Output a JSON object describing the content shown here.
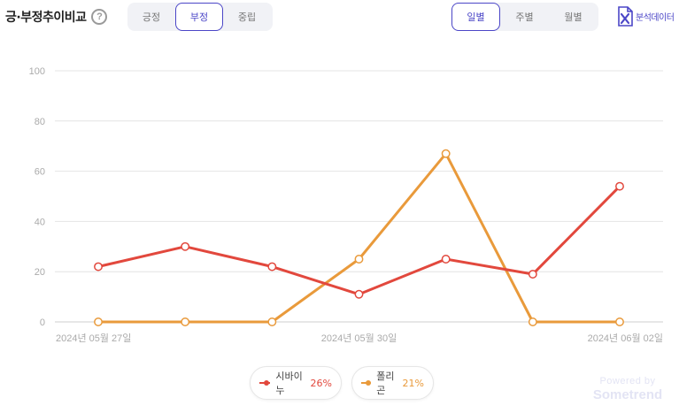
{
  "header": {
    "title": "긍·부정추이비교",
    "help_icon": "question-circle-icon"
  },
  "sentiment_tabs": [
    {
      "label": "긍정",
      "active": false
    },
    {
      "label": "부정",
      "active": true
    },
    {
      "label": "중립",
      "active": false
    }
  ],
  "period_tabs": [
    {
      "label": "일별",
      "active": true
    },
    {
      "label": "주별",
      "active": false
    },
    {
      "label": "월별",
      "active": false
    }
  ],
  "export": {
    "label": "분석데이터",
    "icon": "excel-icon"
  },
  "legend": [
    {
      "name": "시바이누",
      "percent": "26%",
      "color": "#e2483d"
    },
    {
      "name": "폴리곤",
      "percent": "21%",
      "color": "#e99a3b"
    }
  ],
  "branding": {
    "line1": "Powered by",
    "line2": "Sometrend"
  },
  "chart_data": {
    "type": "line",
    "x": [
      "2024-05-27",
      "2024-05-28",
      "2024-05-29",
      "2024-05-30",
      "2024-05-31",
      "2024-06-01",
      "2024-06-02"
    ],
    "x_tick_labels": [
      "2024년 05월 27일",
      "2024년 05월 30일",
      "2024년 06월 02일"
    ],
    "x_tick_index": [
      0,
      3,
      6
    ],
    "y_ticks": [
      0,
      20,
      40,
      60,
      80,
      100
    ],
    "ylim": [
      0,
      100
    ],
    "grid": true,
    "series": [
      {
        "name": "시바이누",
        "color": "#e2483d",
        "values": [
          22,
          30,
          22,
          11,
          25,
          19,
          54
        ]
      },
      {
        "name": "폴리곤",
        "color": "#e99a3b",
        "values": [
          0,
          0,
          0,
          25,
          67,
          0,
          0
        ]
      }
    ]
  }
}
